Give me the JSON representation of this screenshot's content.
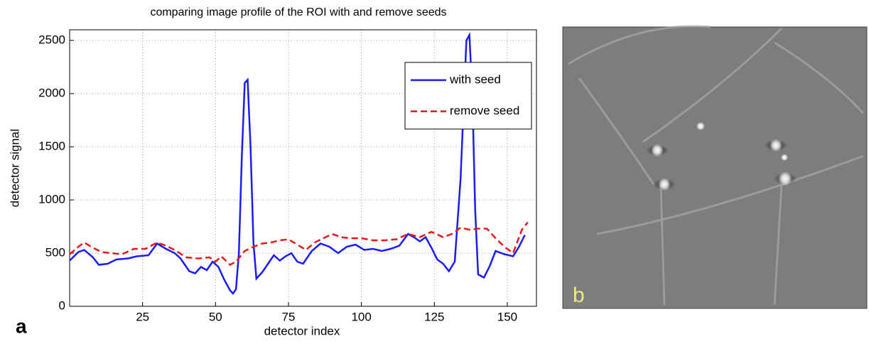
{
  "chart_data": {
    "type": "line",
    "title": "comparing image profile of the ROI with and remove seeds",
    "x_label": "detector index",
    "y_label": "detector signal",
    "xlim": [
      0,
      160
    ],
    "ylim": [
      0,
      2600
    ],
    "xticks": [
      25,
      50,
      75,
      100,
      125,
      150
    ],
    "yticks": [
      0,
      500,
      1000,
      1500,
      2000,
      2500
    ],
    "grid": true,
    "legend": "upper right",
    "series": [
      {
        "name": "with seed",
        "color": "#1a1aff",
        "style": "solid",
        "x": [
          0,
          3,
          5,
          8,
          10,
          13,
          16,
          20,
          23,
          27,
          30,
          33,
          36,
          38,
          41,
          43,
          45,
          47,
          49,
          51,
          53,
          55,
          56,
          57,
          58,
          59,
          60,
          61,
          62,
          63,
          64,
          66,
          68,
          70,
          72,
          74,
          76,
          78,
          80,
          83,
          86,
          89,
          92,
          95,
          98,
          101,
          104,
          107,
          110,
          113,
          116,
          118,
          120,
          122,
          124,
          126,
          128,
          130,
          132,
          134,
          136,
          137,
          138,
          139,
          140,
          142,
          144,
          146,
          149,
          152,
          154,
          156
        ],
        "values": [
          430,
          510,
          530,
          460,
          390,
          400,
          440,
          450,
          470,
          480,
          590,
          540,
          500,
          450,
          330,
          310,
          370,
          340,
          420,
          370,
          250,
          150,
          120,
          160,
          500,
          1400,
          2100,
          2130,
          1500,
          600,
          260,
          320,
          400,
          480,
          430,
          470,
          500,
          420,
          400,
          520,
          590,
          560,
          500,
          560,
          580,
          530,
          540,
          520,
          540,
          570,
          680,
          650,
          610,
          650,
          550,
          440,
          400,
          330,
          420,
          1200,
          2500,
          2550,
          2000,
          900,
          300,
          270,
          380,
          520,
          490,
          470,
          560,
          670
        ]
      },
      {
        "name": "remove seed",
        "color": "#e41a1a",
        "style": "dashed",
        "x": [
          0,
          3,
          5,
          8,
          11,
          14,
          18,
          22,
          26,
          30,
          33,
          36,
          40,
          44,
          48,
          50,
          52,
          55,
          57,
          60,
          63,
          66,
          69,
          72,
          75,
          78,
          81,
          84,
          87,
          90,
          93,
          96,
          100,
          104,
          108,
          112,
          116,
          120,
          124,
          128,
          131,
          134,
          137,
          140,
          143,
          146,
          149,
          152,
          155,
          157
        ],
        "values": [
          490,
          560,
          600,
          550,
          510,
          500,
          490,
          540,
          540,
          600,
          570,
          530,
          460,
          450,
          460,
          420,
          470,
          390,
          420,
          520,
          560,
          590,
          600,
          620,
          630,
          580,
          530,
          600,
          640,
          680,
          650,
          640,
          640,
          620,
          620,
          630,
          680,
          650,
          700,
          650,
          680,
          740,
          720,
          730,
          730,
          640,
          560,
          500,
          720,
          790
        ]
      }
    ],
    "panel_label": "a"
  },
  "image": {
    "panel_label": "b"
  }
}
